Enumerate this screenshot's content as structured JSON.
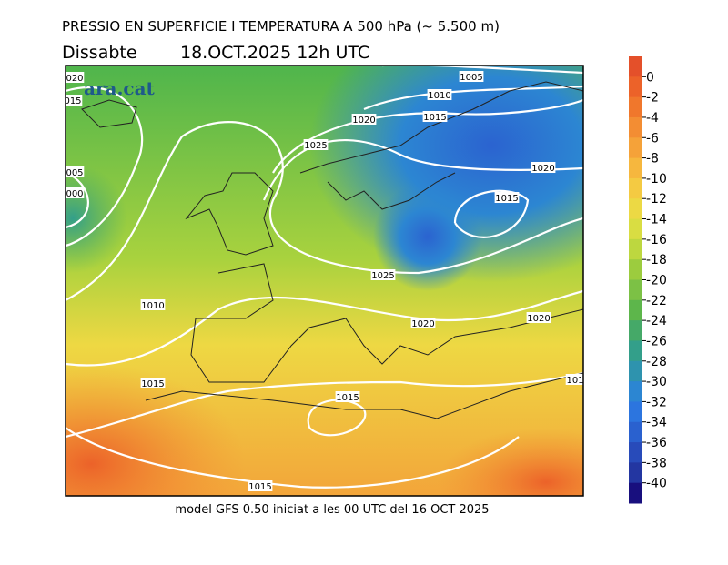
{
  "header": {
    "title": "PRESSIO EN SUPERFICIE I TEMPERATURA A 500 hPa (~ 5.500 m)",
    "day": "Dissabte",
    "date": "18.OCT.2025 12h UTC"
  },
  "map": {
    "watermark": "ara.cat",
    "isobar_labels": [
      "020",
      "015",
      "1005",
      "1010",
      "1020",
      "1015",
      "1025",
      "005",
      "000",
      "1020",
      "1015",
      "1025",
      "1010",
      "1020",
      "1020",
      "1015",
      "1015",
      "1015",
      "101"
    ]
  },
  "colorbar": {
    "labels": [
      "0",
      "-2",
      "-4",
      "-6",
      "-8",
      "-10",
      "-12",
      "-14",
      "-16",
      "-18",
      "-20",
      "-22",
      "-24",
      "-26",
      "-28",
      "-30",
      "-32",
      "-34",
      "-36",
      "-38",
      "-40"
    ],
    "colors": [
      "#e4502a",
      "#ec6229",
      "#f0772c",
      "#f38d33",
      "#f5a239",
      "#f6b73e",
      "#f4ca42",
      "#ecd944",
      "#d9dd42",
      "#bdd73f",
      "#9ccc3e",
      "#7cc145",
      "#5db64b",
      "#45a968",
      "#339f8a",
      "#2e93ae",
      "#2c86d2",
      "#2c75df",
      "#2a61cf",
      "#284bba",
      "#2336a1",
      "#180f7e"
    ]
  },
  "footer": "model GFS 0.50 iniciat a les 00 UTC del 16 OCT 2025"
}
